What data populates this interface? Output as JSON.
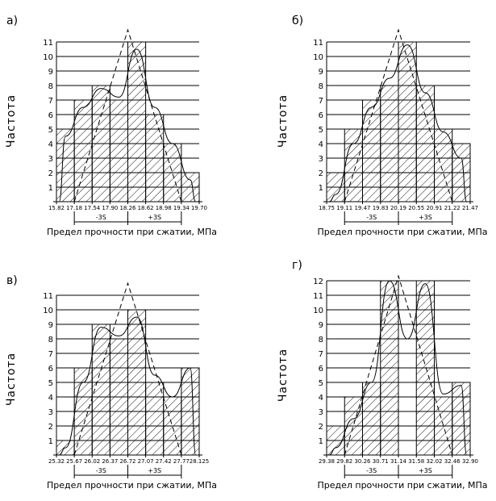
{
  "colors": {
    "ink": "#000000",
    "background": "#ffffff"
  },
  "chart_data": [
    {
      "type": "bar",
      "panel_label": "а)",
      "ylabel": "Частота",
      "xlabel": "Предел прочности при сжатии, МПа",
      "ylim": [
        0,
        11
      ],
      "yticks": [
        1,
        2,
        3,
        4,
        5,
        6,
        7,
        8,
        9,
        10,
        11
      ],
      "bin_edges": [
        "15.82",
        "17.18",
        "17.54",
        "17.90",
        "18.26",
        "18.62",
        "18.98",
        "19.34",
        "19.70"
      ],
      "values": [
        5,
        7,
        8,
        7,
        11,
        6,
        4,
        2
      ],
      "sigma_labels": [
        "-3S",
        "+3S"
      ],
      "curve_fit": [
        4.5,
        6.5,
        7.8,
        7.2,
        10.5,
        6.5,
        4,
        1.5
      ],
      "normal_peak": 11.5
    },
    {
      "type": "bar",
      "panel_label": "б)",
      "ylabel": "Частота",
      "xlabel": "Предел прочности при сжатии, МПа",
      "ylim": [
        0,
        11
      ],
      "yticks": [
        1,
        2,
        3,
        4,
        5,
        6,
        7,
        8,
        9,
        10,
        11
      ],
      "bin_edges": [
        "18.75",
        "19.11",
        "19.47",
        "19.83",
        "20.19",
        "20.55",
        "20.91",
        "21.22",
        "21.47"
      ],
      "values": [
        2,
        5,
        7,
        8,
        11,
        8,
        5,
        4
      ],
      "sigma_labels": [
        "-3S",
        "+3S"
      ],
      "curve_fit": [
        0.5,
        4,
        6.5,
        8.5,
        10.8,
        7.5,
        4.8,
        3
      ],
      "normal_peak": 11.5
    },
    {
      "type": "bar",
      "panel_label": "в)",
      "ylabel": "Частота",
      "xlabel": "Предел прочности при сжатии, МПа",
      "ylim": [
        0,
        11
      ],
      "yticks": [
        1,
        2,
        3,
        4,
        5,
        6,
        7,
        8,
        9,
        10,
        11
      ],
      "bin_edges": [
        "25.32",
        "25.67",
        "26.02",
        "26.37",
        "26.72",
        "27.07",
        "27.42",
        "27.77",
        "28.125"
      ],
      "values": [
        1,
        6,
        9,
        8,
        10,
        5,
        4,
        6
      ],
      "sigma_labels": [
        "-3S",
        "+3S"
      ],
      "curve_fit": [
        0.5,
        5,
        8.8,
        8.2,
        9.5,
        5.5,
        4,
        6
      ],
      "normal_peak": 11.5
    },
    {
      "type": "bar",
      "panel_label": "г)",
      "ylabel": "Частота",
      "xlabel": "Предел прочности при сжатии, МПа",
      "ylim": [
        0,
        12
      ],
      "yticks": [
        1,
        2,
        3,
        4,
        5,
        6,
        7,
        8,
        9,
        10,
        11,
        12
      ],
      "bin_edges": [
        "29.38",
        "29.82",
        "30.26",
        "30.71",
        "31.14",
        "31.58",
        "32.02",
        "32.46",
        "32.90"
      ],
      "values": [
        2,
        4,
        5,
        12,
        0,
        12,
        4,
        5
      ],
      "sigma_labels": [
        "-3S",
        "+3S"
      ],
      "curve_fit": [
        0.5,
        2.5,
        5,
        12,
        8,
        11.8,
        4.2,
        4.8
      ],
      "normal_peak": 12
    }
  ]
}
